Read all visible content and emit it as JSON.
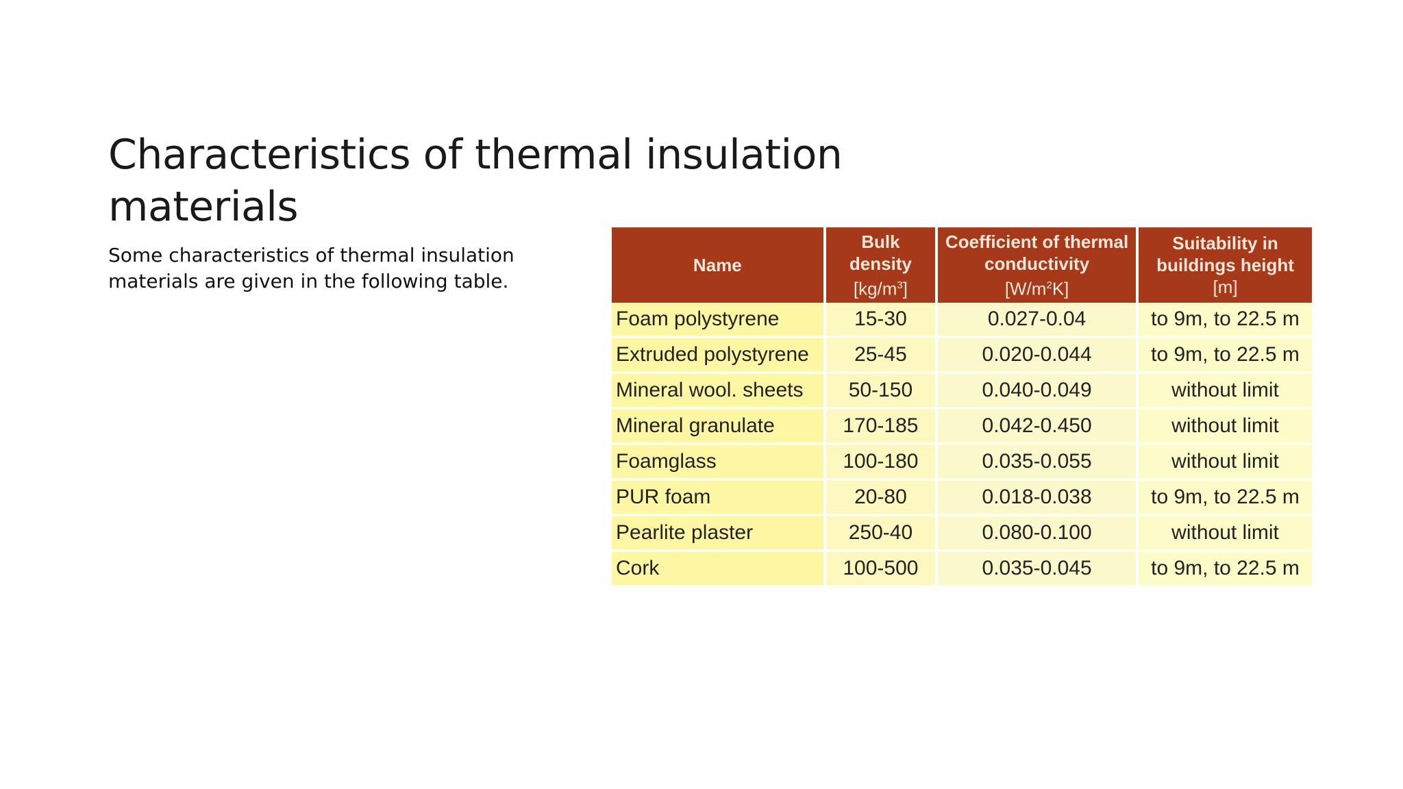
{
  "slide": {
    "title": "Characteristics of thermal insulation materials",
    "body": "Some characteristics of thermal insulation materials are given in the following table."
  },
  "table": {
    "headers": [
      {
        "label": "Name",
        "unit": "",
        "unit_sup": "",
        "unit_end": ""
      },
      {
        "label": "Bulk density",
        "unit": "[kg/m",
        "unit_sup": "3",
        "unit_end": "]"
      },
      {
        "label": "Coefficient of thermal conductivity",
        "unit": "[W/m",
        "unit_sup": "2",
        "unit_end": "K]"
      },
      {
        "label": "Suitability in buildings height",
        "unit": "[m]",
        "unit_sup": "",
        "unit_end": ""
      }
    ],
    "rows": [
      {
        "name": "Foam polystyrene",
        "density": "15-30",
        "conductivity": "0.027-0.04",
        "suitability": "to 9m, to 22.5 m"
      },
      {
        "name": "Extruded polystyrene",
        "density": "25-45",
        "conductivity": "0.020-0.044",
        "suitability": "to 9m, to 22.5 m"
      },
      {
        "name": "Mineral wool. sheets",
        "density": "50-150",
        "conductivity": "0.040-0.049",
        "suitability": "without limit"
      },
      {
        "name": "Mineral granulate",
        "density": "170-185",
        "conductivity": "0.042-0.450",
        "suitability": "without limit"
      },
      {
        "name": "Foamglass",
        "density": "100-180",
        "conductivity": "0.035-0.055",
        "suitability": "without limit"
      },
      {
        "name": "PUR foam",
        "density": "20-80",
        "conductivity": "0.018-0.038",
        "suitability": "to 9m, to 22.5 m"
      },
      {
        "name": "Pearlite plaster",
        "density": "250-40",
        "conductivity": "0.080-0.100",
        "suitability": "without limit"
      },
      {
        "name": "Cork",
        "density": "100-500",
        "conductivity": "0.035-0.045",
        "suitability": "to 9m, to 22.5 m"
      }
    ]
  },
  "colors": {
    "header_bg": "#a5391a",
    "header_text": "#f6e6d8",
    "cell_bg": "#fdf7a4"
  }
}
